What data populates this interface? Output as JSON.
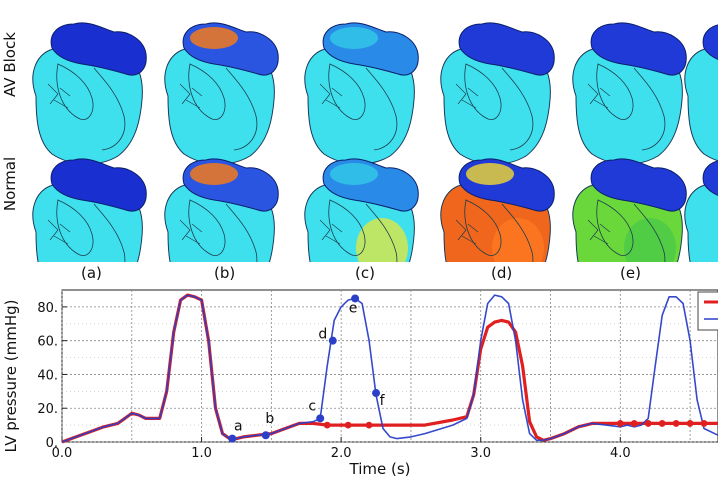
{
  "figure": {
    "row_labels": [
      "AV Block",
      "Normal"
    ],
    "panel_labels": [
      "(a)",
      "(b)",
      "(c)",
      "(d)",
      "(e)"
    ]
  },
  "heart_panels": {
    "av_block": [
      {
        "atria": "#1a2fd0",
        "atria_hot": null,
        "ventricle": "#3ee0ee",
        "ventricle_hot": null
      },
      {
        "atria": "#2a55e0",
        "atria_hot": "#f27a1c",
        "ventricle": "#3ee0ee",
        "ventricle_hot": null
      },
      {
        "atria": "#2a8ae8",
        "atria_hot": "#31c7e8",
        "ventricle": "#3ee0ee",
        "ventricle_hot": null
      },
      {
        "atria": "#1f3ad6",
        "atria_hot": null,
        "ventricle": "#3ee0ee",
        "ventricle_hot": null
      },
      {
        "atria": "#1f3ad6",
        "atria_hot": null,
        "ventricle": "#3ee0ee",
        "ventricle_hot": null
      }
    ],
    "normal": [
      {
        "atria": "#1a2fd0",
        "atria_hot": null,
        "ventricle": "#3ee0ee",
        "ventricle_hot": null
      },
      {
        "atria": "#2a55e0",
        "atria_hot": "#f27a1c",
        "ventricle": "#3ee0ee",
        "ventricle_hot": null
      },
      {
        "atria": "#2a8ae8",
        "atria_hot": "#31c7e8",
        "ventricle": "#3ee0ee",
        "ventricle_hot": "#e8e83a"
      },
      {
        "atria": "#1f3ad6",
        "atria_hot": "#e8d03a",
        "ventricle": "#f0661c",
        "ventricle_hot": "#ff7a22"
      },
      {
        "atria": "#1f3ad6",
        "atria_hot": null,
        "ventricle": "#6ad83a",
        "ventricle_hot": "#4ac84a"
      }
    ]
  },
  "chart_data": {
    "type": "line",
    "xlabel": "Time (s)",
    "ylabel": "LV pressure (mmHg)",
    "xlim": [
      0,
      4.7
    ],
    "ylim": [
      0,
      90
    ],
    "x_ticks": [
      0.0,
      1.0,
      2.0,
      3.0,
      4.0
    ],
    "x_tick_labels": [
      "0.0",
      "1.0",
      "2.0",
      "3.0",
      "4.0"
    ],
    "y_ticks": [
      0,
      20,
      40,
      60,
      80
    ],
    "y_tick_labels": [
      "0.",
      "20.",
      "40.",
      "60.",
      "80."
    ],
    "x_minor_grid": [
      0.5,
      1.5,
      2.5,
      3.5,
      4.5
    ],
    "grid": true,
    "series": [
      {
        "color": "#e02020",
        "x": [
          0,
          0.1,
          0.2,
          0.3,
          0.4,
          0.45,
          0.5,
          0.55,
          0.6,
          0.7,
          0.75,
          0.8,
          0.85,
          0.9,
          0.95,
          1.0,
          1.05,
          1.1,
          1.15,
          1.2,
          1.25,
          1.3,
          1.4,
          1.5,
          1.6,
          1.7,
          1.8,
          1.9,
          2.0,
          2.2,
          2.4,
          2.6,
          2.8,
          2.9,
          2.95,
          3.0,
          3.05,
          3.1,
          3.15,
          3.2,
          3.25,
          3.3,
          3.35,
          3.4,
          3.45,
          3.5,
          3.6,
          3.7,
          3.8,
          3.9,
          4.0,
          4.2,
          4.4,
          4.6,
          4.7
        ],
        "y": [
          0,
          3,
          6,
          9,
          11,
          14,
          17,
          16,
          14,
          14,
          30,
          65,
          84,
          87,
          86,
          84,
          60,
          20,
          5,
          2,
          2,
          3,
          4,
          5,
          8,
          11,
          11,
          10,
          10,
          10,
          10,
          10,
          13,
          15,
          28,
          55,
          68,
          71,
          72,
          71,
          65,
          45,
          12,
          3,
          1,
          2,
          5,
          9,
          11,
          11,
          11,
          11,
          11,
          11,
          11
        ]
      },
      {
        "color": "#2b3fc8",
        "x": [
          0,
          0.1,
          0.2,
          0.3,
          0.4,
          0.45,
          0.5,
          0.55,
          0.6,
          0.7,
          0.75,
          0.8,
          0.85,
          0.9,
          0.95,
          1.0,
          1.05,
          1.1,
          1.15,
          1.2,
          1.25,
          1.3,
          1.4,
          1.5,
          1.6,
          1.7,
          1.8,
          1.85,
          1.9,
          1.95,
          2.0,
          2.05,
          2.1,
          2.15,
          2.2,
          2.25,
          2.3,
          2.35,
          2.4,
          2.5,
          2.6,
          2.8,
          2.9,
          2.95,
          3.0,
          3.05,
          3.1,
          3.15,
          3.2,
          3.25,
          3.3,
          3.35,
          3.4,
          3.45,
          3.5,
          3.6,
          3.7,
          3.8,
          3.9,
          4.0,
          4.05,
          4.1,
          4.15,
          4.2,
          4.25,
          4.3,
          4.35,
          4.4,
          4.45,
          4.5,
          4.55,
          4.6,
          4.7
        ],
        "y": [
          0,
          3,
          6,
          9,
          11,
          14,
          17,
          16,
          14,
          14,
          30,
          65,
          84,
          87,
          86,
          84,
          60,
          20,
          5,
          2,
          2,
          3,
          4,
          5,
          8,
          11,
          12,
          14,
          45,
          72,
          80,
          84,
          85,
          82,
          60,
          28,
          8,
          3,
          2,
          3,
          5,
          10,
          14,
          28,
          60,
          82,
          87,
          86,
          82,
          60,
          25,
          5,
          1,
          1,
          2,
          5,
          9,
          11,
          10,
          9,
          10,
          9,
          10,
          14,
          45,
          75,
          86,
          86,
          82,
          60,
          25,
          8,
          4
        ]
      }
    ],
    "annotations": [
      {
        "label": "a",
        "x": 1.22,
        "y": 2,
        "color": "#2b3fc8"
      },
      {
        "label": "b",
        "x": 1.46,
        "y": 4,
        "color": "#2b3fc8"
      },
      {
        "label": "c",
        "x": 1.85,
        "y": 14,
        "color": "#2b3fc8"
      },
      {
        "label": "d",
        "x": 1.94,
        "y": 60,
        "color": "#2b3fc8"
      },
      {
        "label": "e",
        "x": 2.1,
        "y": 85,
        "color": "#2b3fc8"
      },
      {
        "label": "f",
        "x": 2.25,
        "y": 29,
        "color": "#2b3fc8"
      }
    ],
    "red_markers": [
      {
        "x": 1.9,
        "y": 10
      },
      {
        "x": 2.05,
        "y": 10
      },
      {
        "x": 2.2,
        "y": 10
      },
      {
        "x": 4.0,
        "y": 11
      },
      {
        "x": 4.1,
        "y": 11
      },
      {
        "x": 4.2,
        "y": 11
      },
      {
        "x": 4.3,
        "y": 11
      },
      {
        "x": 4.4,
        "y": 11
      },
      {
        "x": 4.5,
        "y": 11
      },
      {
        "x": 4.6,
        "y": 11
      }
    ]
  }
}
